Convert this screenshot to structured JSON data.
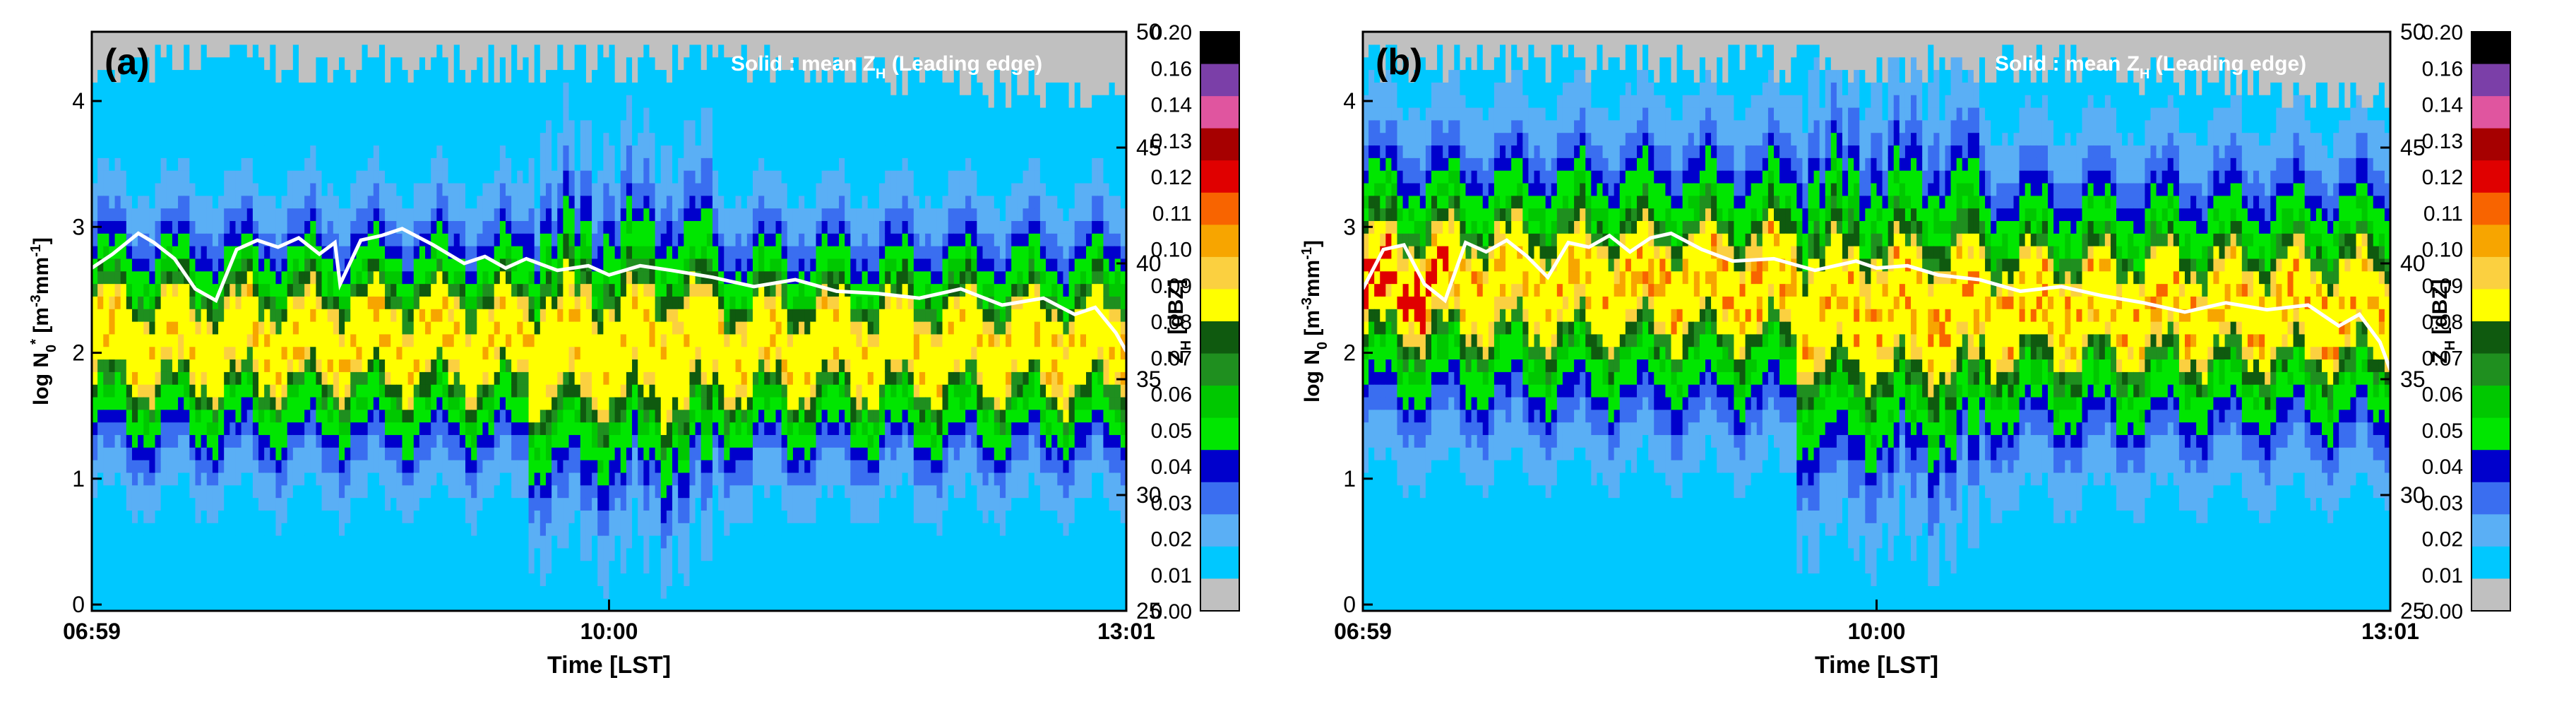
{
  "chart_data": [
    {
      "type": "heatmap",
      "panel_label": "(a)",
      "annotation": {
        "prefix": "Solid : mean Z",
        "sub": "H",
        "suffix": " (Leading edge)"
      },
      "xlabel": "Time [LST]",
      "xticks": [
        {
          "label": "06:59",
          "frac": 0.0
        },
        {
          "label": "10:00",
          "frac": 0.5
        },
        {
          "label": "13:01",
          "frac": 1.0
        }
      ],
      "ylabel_parts": {
        "prefix": "log N",
        "sub": "0",
        "sup": "*",
        "unit": " [m",
        "unit_sup1": "-3",
        "unit_mid": "mm",
        "unit_sup2": "-1",
        "unit_end": "]"
      },
      "ylim": [
        -0.05,
        4.55
      ],
      "yticks": [
        "0",
        "1",
        "2",
        "3",
        "4"
      ],
      "y2label_parts": {
        "prefix": "Z",
        "sub": "H",
        "suffix": " [dBZ]"
      },
      "y2lim": [
        25,
        50
      ],
      "y2ticks": [
        "25",
        "30",
        "35",
        "40",
        "45",
        "50"
      ],
      "line_series": {
        "name": "mean Z_H (Leading edge)",
        "color": "#ffffff",
        "x_frac": [
          0.0,
          0.02,
          0.045,
          0.06,
          0.08,
          0.1,
          0.12,
          0.14,
          0.16,
          0.18,
          0.2,
          0.22,
          0.235,
          0.24,
          0.26,
          0.28,
          0.3,
          0.33,
          0.36,
          0.38,
          0.4,
          0.42,
          0.45,
          0.48,
          0.5,
          0.53,
          0.56,
          0.6,
          0.64,
          0.68,
          0.72,
          0.76,
          0.8,
          0.84,
          0.88,
          0.92,
          0.95,
          0.97,
          0.99,
          1.0
        ],
        "values": [
          39.8,
          40.4,
          41.3,
          40.9,
          40.2,
          38.9,
          38.4,
          40.6,
          41.0,
          40.7,
          41.1,
          40.4,
          40.9,
          39.1,
          41.0,
          41.2,
          41.5,
          40.8,
          40.0,
          40.3,
          39.8,
          40.2,
          39.7,
          39.9,
          39.5,
          39.9,
          39.7,
          39.4,
          39.0,
          39.3,
          38.8,
          38.7,
          38.5,
          38.9,
          38.2,
          38.5,
          37.8,
          38.1,
          37.0,
          36.2
        ]
      },
      "heatmap_description": "log N0* frequency distribution (0.00-0.20) versus time; high frequencies (0.08-0.11) concentrated between log N0* 1.7 and 2.5, shifting to 1.8-2.3 after 10:00"
    },
    {
      "type": "heatmap",
      "panel_label": "(b)",
      "annotation": {
        "prefix": "Solid : mean Z",
        "sub": "H",
        "suffix": " (Leading edge)"
      },
      "xlabel": "Time [LST]",
      "xticks": [
        {
          "label": "06:59",
          "frac": 0.0
        },
        {
          "label": "10:00",
          "frac": 0.5
        },
        {
          "label": "13:01",
          "frac": 1.0
        }
      ],
      "ylabel_parts": {
        "prefix": "log N",
        "sub": "0",
        "sup": "",
        "unit": " [m",
        "unit_sup1": "-3",
        "unit_mid": "mm",
        "unit_sup2": "-1",
        "unit_end": "]"
      },
      "ylim": [
        -0.05,
        4.55
      ],
      "yticks": [
        "0",
        "1",
        "2",
        "3",
        "4"
      ],
      "y2label_parts": {
        "prefix": "Z",
        "sub": "H",
        "suffix": " [dBZ]"
      },
      "y2lim": [
        25,
        50
      ],
      "y2ticks": [
        "25",
        "30",
        "35",
        "40",
        "45",
        "50"
      ],
      "line_series": {
        "name": "mean Z_H (Leading edge)",
        "color": "#ffffff",
        "x_frac": [
          0.0,
          0.02,
          0.04,
          0.06,
          0.08,
          0.1,
          0.12,
          0.14,
          0.16,
          0.18,
          0.2,
          0.22,
          0.24,
          0.26,
          0.28,
          0.3,
          0.33,
          0.36,
          0.4,
          0.44,
          0.48,
          0.5,
          0.53,
          0.56,
          0.6,
          0.64,
          0.68,
          0.72,
          0.76,
          0.8,
          0.84,
          0.88,
          0.92,
          0.95,
          0.97,
          0.99,
          1.0
        ],
        "values": [
          38.9,
          40.6,
          40.8,
          39.1,
          38.4,
          40.9,
          40.5,
          41.0,
          40.3,
          39.4,
          40.9,
          40.7,
          41.2,
          40.5,
          41.1,
          41.3,
          40.6,
          40.1,
          40.2,
          39.7,
          40.1,
          39.8,
          39.9,
          39.5,
          39.3,
          38.8,
          39.0,
          38.6,
          38.3,
          37.9,
          38.3,
          38.0,
          38.2,
          37.3,
          37.8,
          36.6,
          35.4
        ]
      },
      "heatmap_description": "log N0 frequency distribution (0.00-0.20) versus time; high frequencies (0.08-0.13) concentrated between log N0 2.0 and 3.0"
    }
  ],
  "colorbar": {
    "ticks": [
      "0.20",
      "0.16",
      "0.14",
      "0.13",
      "0.12",
      "0.11",
      "0.10",
      "0.09",
      "0.08",
      "0.07",
      "0.06",
      "0.05",
      "0.04",
      "0.03",
      "0.02",
      "0.01",
      "0.00"
    ],
    "colors": [
      "#000000",
      "#7b3fa8",
      "#e0559f",
      "#a60000",
      "#e00000",
      "#f86400",
      "#f7a500",
      "#fbd040",
      "#ffff00",
      "#0f5a0f",
      "#1f8f1f",
      "#00c800",
      "#00e600",
      "#0000cc",
      "#3a6ef0",
      "#5aaff5",
      "#00c8ff",
      "#c0c0c0"
    ]
  }
}
